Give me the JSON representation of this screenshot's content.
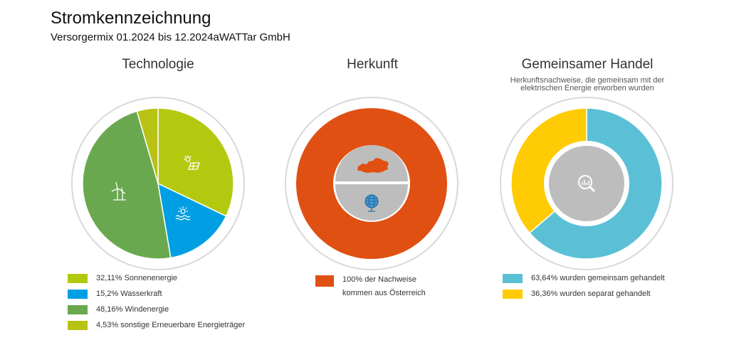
{
  "page": {
    "title": "Stromkennzeichnung",
    "subtitle": "Versorgermix 01.2024 bis 12.2024aWATTar GmbH"
  },
  "panels": [
    {
      "title": "Technologie",
      "legend": [
        {
          "label": "32,11% Sonnenenergie",
          "color": "#b3c90f"
        },
        {
          "label": "15,2% Wasserkraft",
          "color": "#009fe3"
        },
        {
          "label": "48,16% Windenergie",
          "color": "#6aa84f"
        },
        {
          "label": "4,53% sonstige Erneuerbare Energieträger",
          "color": "#b8c215"
        }
      ]
    },
    {
      "title": "Herkunft",
      "legend": [
        {
          "label_line1": "100% der Nachweise",
          "label_line2": "kommen aus Österreich",
          "color": "#e05012"
        }
      ]
    },
    {
      "title": "Gemeinsamer Handel",
      "note_line1": "Herkunftsnachweise, die gemeinsam mit der",
      "note_line2": "elektrischen Energie erworben wurden",
      "legend": [
        {
          "label": "63,64% wurden gemeinsam gehandelt",
          "color": "#5bc0d6"
        },
        {
          "label": "36,36% wurden separat gehandelt",
          "color": "#ffcb05"
        }
      ]
    }
  ],
  "chart_data": [
    {
      "type": "pie",
      "title": "Technologie",
      "categories": [
        "Sonnenenergie",
        "Wasserkraft",
        "Windenergie",
        "sonstige Erneuerbare Energieträger"
      ],
      "values": [
        32.11,
        15.2,
        48.16,
        4.53
      ],
      "colors": [
        "#b3c90f",
        "#009fe3",
        "#6aa84f",
        "#b8c215"
      ],
      "icons": [
        "solar-panel-icon",
        "water-icon",
        "wind-turbine-icon",
        null
      ]
    },
    {
      "type": "pie",
      "title": "Herkunft",
      "categories": [
        "Österreich"
      ],
      "values": [
        100
      ],
      "colors": [
        "#e05012"
      ],
      "icons": [
        "austria-map-icon",
        "globe-icon"
      ]
    },
    {
      "type": "pie",
      "title": "Gemeinsamer Handel",
      "categories": [
        "gemeinsam gehandelt",
        "separat gehandelt"
      ],
      "values": [
        63.64,
        36.36
      ],
      "colors": [
        "#5bc0d6",
        "#ffcb05"
      ],
      "icons": [
        "magnifier-chart-icon"
      ]
    }
  ]
}
